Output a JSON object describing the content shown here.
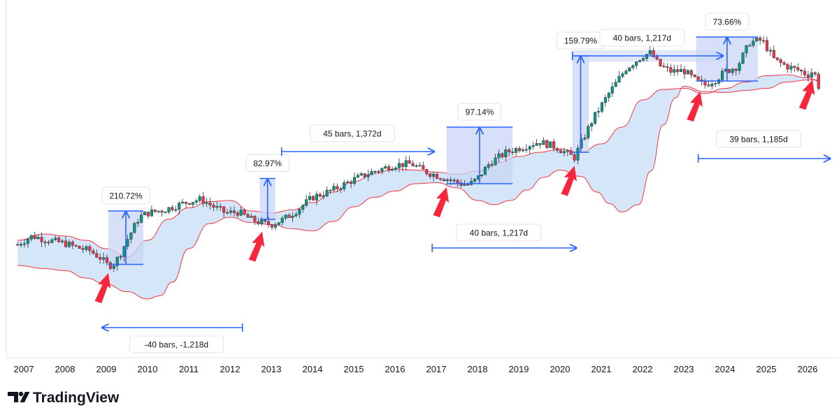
{
  "chart_data": {
    "type": "candlestick",
    "x_axis": {
      "tick_labels": [
        "2007",
        "2008",
        "2009",
        "2010",
        "2011",
        "2012",
        "2013",
        "2014",
        "2015",
        "2016",
        "2017",
        "2018",
        "2019",
        "2020",
        "2021",
        "2022",
        "2023",
        "2024",
        "2025",
        "2026"
      ]
    },
    "grid": false,
    "price_trend": [
      [
        "2006.85",
        100
      ],
      [
        "2007.2",
        108
      ],
      [
        "2007.6",
        104
      ],
      [
        "2008.0",
        101
      ],
      [
        "2008.3",
        97
      ],
      [
        "2008.6",
        94
      ],
      [
        "2008.9",
        86
      ],
      [
        "2009.0",
        81
      ],
      [
        "2009.15",
        80
      ],
      [
        "2009.3",
        88
      ],
      [
        "2009.5",
        104
      ],
      [
        "2009.8",
        126
      ],
      [
        "2010.0",
        130
      ],
      [
        "2010.4",
        133
      ],
      [
        "2010.7",
        137
      ],
      [
        "2011.0",
        141
      ],
      [
        "2011.3",
        143
      ],
      [
        "2011.6",
        136
      ],
      [
        "2011.9",
        130
      ],
      [
        "2012.2",
        131
      ],
      [
        "2012.5",
        124
      ],
      [
        "2012.8",
        120
      ],
      [
        "2013.0",
        119
      ],
      [
        "2013.3",
        124
      ],
      [
        "2013.6",
        132
      ],
      [
        "2014.0",
        145
      ],
      [
        "2014.5",
        152
      ],
      [
        "2015.0",
        162
      ],
      [
        "2015.5",
        170
      ],
      [
        "2016.0",
        176
      ],
      [
        "2016.4",
        177
      ],
      [
        "2016.7",
        170
      ],
      [
        "2017.0",
        166
      ],
      [
        "2017.3",
        162
      ],
      [
        "2017.6",
        158
      ],
      [
        "2017.8",
        157
      ],
      [
        "2018.0",
        163
      ],
      [
        "2018.3",
        178
      ],
      [
        "2018.7",
        188
      ],
      [
        "2019.0",
        192
      ],
      [
        "2019.5",
        198
      ],
      [
        "2019.9",
        193
      ],
      [
        "2020.2",
        186
      ],
      [
        "2020.35",
        183
      ],
      [
        "2020.5",
        196
      ],
      [
        "2020.8",
        220
      ],
      [
        "2021.2",
        245
      ],
      [
        "2021.6",
        268
      ],
      [
        "2022.0",
        280
      ],
      [
        "2022.2",
        283
      ],
      [
        "2022.4",
        271
      ],
      [
        "2022.7",
        265
      ],
      [
        "2023.0",
        266
      ],
      [
        "2023.3",
        256
      ],
      [
        "2023.5",
        252
      ],
      [
        "2023.8",
        258
      ],
      [
        "2024.0",
        265
      ],
      [
        "2024.3",
        270
      ],
      [
        "2024.6",
        293
      ],
      [
        "2024.9",
        295
      ],
      [
        "2025.2",
        276
      ],
      [
        "2025.5",
        270
      ],
      [
        "2025.8",
        266
      ],
      [
        "2026.0",
        262
      ],
      [
        "2026.15",
        266
      ],
      [
        "2026.3",
        247
      ]
    ],
    "band": {
      "upper": [
        [
          "2006.85",
          104
        ],
        [
          "2007.5",
          110
        ],
        [
          "2008.0",
          108
        ],
        [
          "2008.5",
          104
        ],
        [
          "2009.0",
          96
        ],
        [
          "2009.5",
          88
        ],
        [
          "2010.0",
          104
        ],
        [
          "2010.5",
          124
        ],
        [
          "2011.0",
          135
        ],
        [
          "2011.5",
          141
        ],
        [
          "2012.0",
          142
        ],
        [
          "2012.5",
          132
        ],
        [
          "2013.0",
          130
        ],
        [
          "2013.5",
          133
        ],
        [
          "2014.0",
          140
        ],
        [
          "2014.5",
          150
        ],
        [
          "2015.0",
          160
        ],
        [
          "2015.5",
          168
        ],
        [
          "2016.0",
          172
        ],
        [
          "2016.5",
          171
        ],
        [
          "2017.0",
          169
        ],
        [
          "2017.5",
          167
        ],
        [
          "2018.0",
          170
        ],
        [
          "2018.5",
          178
        ],
        [
          "2019.0",
          184
        ],
        [
          "2019.5",
          188
        ],
        [
          "2020.0",
          191
        ],
        [
          "2020.5",
          188
        ],
        [
          "2021.0",
          196
        ],
        [
          "2021.5",
          212
        ],
        [
          "2022.0",
          238
        ],
        [
          "2022.5",
          248
        ],
        [
          "2023.0",
          249
        ],
        [
          "2023.5",
          244
        ],
        [
          "2024.0",
          249
        ],
        [
          "2024.5",
          255
        ],
        [
          "2025.0",
          261
        ],
        [
          "2025.5",
          262
        ],
        [
          "2026.0",
          259
        ],
        [
          "2026.3",
          256
        ]
      ],
      "lower": [
        [
          "2006.85",
          80
        ],
        [
          "2007.5",
          77
        ],
        [
          "2008.0",
          75
        ],
        [
          "2008.5",
          68
        ],
        [
          "2009.0",
          62
        ],
        [
          "2009.5",
          55
        ],
        [
          "2010.0",
          48
        ],
        [
          "2010.3",
          51
        ],
        [
          "2010.6",
          64
        ],
        [
          "2011.0",
          96
        ],
        [
          "2011.5",
          120
        ],
        [
          "2012.0",
          126
        ],
        [
          "2012.5",
          121
        ],
        [
          "2013.0",
          119
        ],
        [
          "2013.5",
          115
        ],
        [
          "2014.0",
          113
        ],
        [
          "2014.5",
          122
        ],
        [
          "2015.0",
          136
        ],
        [
          "2015.5",
          145
        ],
        [
          "2016.0",
          151
        ],
        [
          "2016.5",
          158
        ],
        [
          "2017.0",
          159
        ],
        [
          "2017.5",
          154
        ],
        [
          "2018.0",
          142
        ],
        [
          "2018.4",
          138
        ],
        [
          "2018.8",
          142
        ],
        [
          "2019.2",
          152
        ],
        [
          "2019.6",
          164
        ],
        [
          "2020.0",
          171
        ],
        [
          "2020.5",
          165
        ],
        [
          "2020.9",
          150
        ],
        [
          "2021.2",
          139
        ],
        [
          "2021.5",
          131
        ],
        [
          "2021.9",
          138
        ],
        [
          "2022.2",
          170
        ],
        [
          "2022.5",
          214
        ],
        [
          "2022.8",
          240
        ],
        [
          "2023.0",
          251
        ],
        [
          "2023.5",
          246
        ],
        [
          "2024.0",
          245
        ],
        [
          "2024.5",
          247
        ],
        [
          "2025.0",
          249
        ],
        [
          "2025.5",
          255
        ],
        [
          "2026.0",
          257
        ],
        [
          "2026.3",
          257
        ]
      ]
    },
    "annotations": [
      {
        "type": "measure_up",
        "label": "210.72%",
        "x": [
          "2009.05",
          "2009.9"
        ],
        "y": [
          81,
          132
        ]
      },
      {
        "type": "measure_up",
        "label": "82.97%",
        "x": [
          "2012.72",
          "2013.1"
        ],
        "y": [
          124,
          163
        ]
      },
      {
        "type": "measure_up",
        "label": "97.14%",
        "x": [
          "2017.25",
          "2018.85"
        ],
        "y": [
          158,
          212
        ]
      },
      {
        "type": "measure_up",
        "label": "159.79%",
        "x": [
          "2020.3",
          "2020.7"
        ],
        "y": [
          188,
          280
        ]
      },
      {
        "type": "measure_up",
        "label": "73.66%",
        "x": [
          "2023.3",
          "2024.8"
        ],
        "y": [
          256,
          298
        ]
      },
      {
        "type": "range_left",
        "label": "-40 bars, -1,218d",
        "x": [
          "2008.9",
          "2012.3"
        ]
      },
      {
        "type": "range_right",
        "label": "45 bars, 1,372d",
        "x": [
          "2013.25",
          "2016.95"
        ]
      },
      {
        "type": "range_right",
        "label": "40 bars, 1,217d",
        "x": [
          "2016.9",
          "2020.4"
        ]
      },
      {
        "type": "range_right",
        "label": "40 bars, 1,217d",
        "x": [
          "2020.3",
          "2023.95"
        ]
      },
      {
        "type": "range_right",
        "label": "39 bars, 1,185d",
        "x": [
          "2023.35",
          "2026.55"
        ]
      }
    ],
    "signal_arrows": [
      "2009.05",
      "2012.78",
      "2017.25",
      "2020.35",
      "2023.4",
      "2026.12"
    ],
    "colors": {
      "up": "#089981",
      "down": "#f23645",
      "band_fill": "#d4e6f8",
      "band_line": "#f23645",
      "measure_fill": "#c9d6f5",
      "tool_blue": "#2962ff",
      "arrow_red": "#f7263d"
    }
  },
  "brand": {
    "name": "TradingView"
  }
}
